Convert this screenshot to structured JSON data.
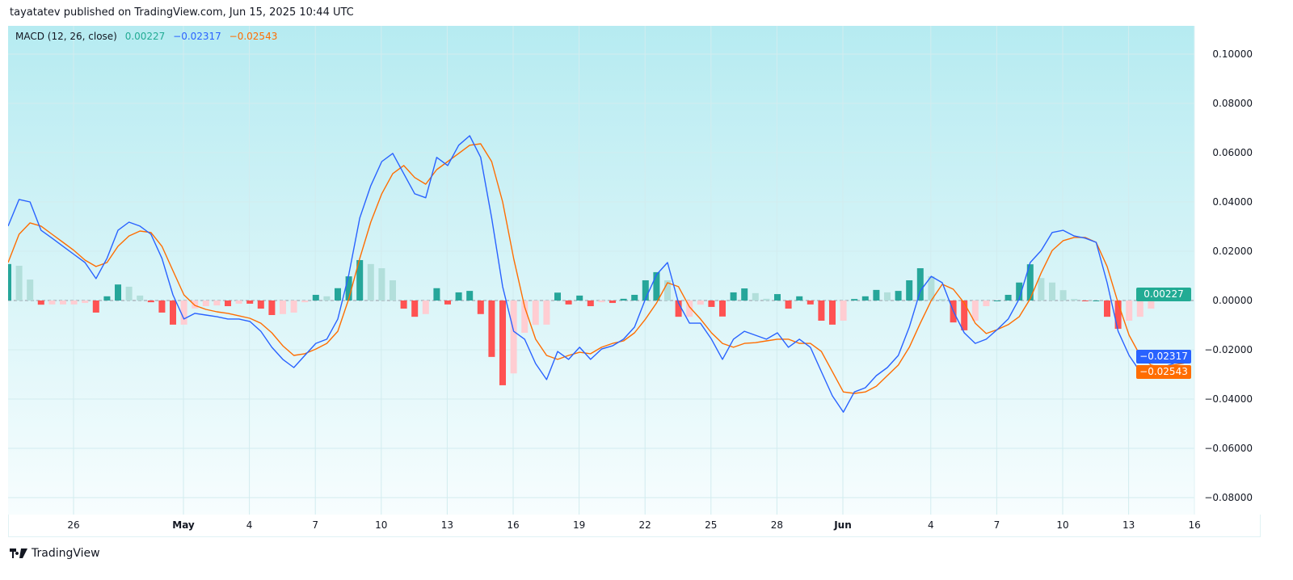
{
  "header": {
    "published": "tayatatev published on TradingView.com, Jun 15, 2025 10:44 UTC"
  },
  "legend": {
    "indicator": "MACD (12, 26, close)",
    "histogram_value": "0.00227",
    "macd_value": "−0.02317",
    "signal_value": "−0.02543"
  },
  "badges": {
    "histogram": "0.00227",
    "macd": "−0.02317",
    "signal": "−0.02543"
  },
  "footer": {
    "brand": "TradingView",
    "logo_icon": "tradingview-logo-icon"
  },
  "colors": {
    "macd": "#2962ff",
    "signal": "#ff6d00",
    "hist_pos_up": "#26a69a",
    "hist_pos_down": "#b2dfdb",
    "hist_neg_down": "#ff5252",
    "hist_neg_up": "#ffcdd2"
  },
  "chart_data": {
    "type": "line",
    "title": "MACD (12, 26, close)",
    "start": "2025-04-23T00:00",
    "interval_hours": 12,
    "ylim": [
      -0.09,
      0.11
    ],
    "grid": true,
    "y_ticks": [
      "0.10000",
      "0.08000",
      "0.06000",
      "0.04000",
      "0.02000",
      "0.00000",
      "−0.02000",
      "−0.04000",
      "−0.06000",
      "−0.08000"
    ],
    "y_tick_values": [
      0.1,
      0.08,
      0.06,
      0.04,
      0.02,
      0,
      -0.02,
      -0.04,
      -0.06,
      -0.08
    ],
    "x_ticks": [
      {
        "label": "26",
        "date": "2025-04-26"
      },
      {
        "label": "May",
        "date": "2025-05-01"
      },
      {
        "label": "4",
        "date": "2025-05-04"
      },
      {
        "label": "7",
        "date": "2025-05-07"
      },
      {
        "label": "10",
        "date": "2025-05-10"
      },
      {
        "label": "13",
        "date": "2025-05-13"
      },
      {
        "label": "16",
        "date": "2025-05-16"
      },
      {
        "label": "19",
        "date": "2025-05-19"
      },
      {
        "label": "22",
        "date": "2025-05-22"
      },
      {
        "label": "25",
        "date": "2025-05-25"
      },
      {
        "label": "28",
        "date": "2025-05-28"
      },
      {
        "label": "Jun",
        "date": "2025-05-31"
      },
      {
        "label": "4",
        "date": "2025-06-04"
      },
      {
        "label": "7",
        "date": "2025-06-07"
      },
      {
        "label": "10",
        "date": "2025-06-10"
      },
      {
        "label": "13",
        "date": "2025-06-13"
      },
      {
        "label": "16",
        "date": "2025-06-16"
      }
    ],
    "series": [
      {
        "name": "MACD",
        "values": [
          0.0302,
          0.041,
          0.04,
          0.0285,
          0.0253,
          0.022,
          0.0187,
          0.0154,
          0.0089,
          0.0171,
          0.0285,
          0.0318,
          0.0302,
          0.0269,
          0.0171,
          0.0023,
          -0.0075,
          -0.0052,
          -0.0059,
          -0.0066,
          -0.0075,
          -0.0075,
          -0.0085,
          -0.0125,
          -0.019,
          -0.0239,
          -0.0272,
          -0.0223,
          -0.0174,
          -0.0157,
          -0.0075,
          0.0105,
          0.0335,
          0.0466,
          0.0564,
          0.0597,
          0.0515,
          0.0433,
          0.0417,
          0.0581,
          0.0548,
          0.063,
          0.0669,
          0.0581,
          0.0335,
          0.0056,
          -0.0125,
          -0.0157,
          -0.0256,
          -0.0321,
          -0.0207,
          -0.0239,
          -0.019,
          -0.0239,
          -0.0197,
          -0.0184,
          -0.0157,
          -0.0108,
          0.0007,
          0.0105,
          0.0154,
          -0.001,
          -0.0092,
          -0.0092,
          -0.0157,
          -0.0239,
          -0.0157,
          -0.0125,
          -0.0141,
          -0.0157,
          -0.0131,
          -0.019,
          -0.0157,
          -0.019,
          -0.0289,
          -0.0387,
          -0.0453,
          -0.0371,
          -0.0354,
          -0.0305,
          -0.0272,
          -0.0223,
          -0.0108,
          0.0039,
          0.0098,
          0.0072,
          -0.0043,
          -0.0131,
          -0.0174,
          -0.0157,
          -0.0118,
          -0.0075,
          0.0007,
          0.0154,
          0.0203,
          0.0276,
          0.0285,
          0.0262,
          0.0253,
          0.0236,
          0.0072,
          -0.0125,
          -0.0223,
          -0.0289,
          -0.0295,
          -0.0272,
          -0.0256,
          -0.02317
        ]
      },
      {
        "name": "Signal",
        "values": [
          0.0154,
          0.0269,
          0.0315,
          0.0302,
          0.0269,
          0.0236,
          0.0203,
          0.0164,
          0.0138,
          0.0154,
          0.022,
          0.0262,
          0.0282,
          0.0276,
          0.022,
          0.0121,
          0.0023,
          -0.002,
          -0.0036,
          -0.0046,
          -0.0052,
          -0.0062,
          -0.0072,
          -0.0092,
          -0.0131,
          -0.0184,
          -0.0223,
          -0.0216,
          -0.0197,
          -0.0174,
          -0.0125,
          0.0007,
          0.0171,
          0.0318,
          0.0433,
          0.0515,
          0.0548,
          0.0499,
          0.0472,
          0.0531,
          0.0564,
          0.0597,
          0.063,
          0.0636,
          0.0564,
          0.04,
          0.0171,
          -0.0026,
          -0.0157,
          -0.0223,
          -0.0239,
          -0.0223,
          -0.021,
          -0.0216,
          -0.019,
          -0.0174,
          -0.0164,
          -0.0131,
          -0.0075,
          -0.001,
          0.0072,
          0.0056,
          -0.0026,
          -0.0075,
          -0.0131,
          -0.0174,
          -0.019,
          -0.0174,
          -0.0171,
          -0.0164,
          -0.0157,
          -0.0157,
          -0.0174,
          -0.0174,
          -0.0207,
          -0.0289,
          -0.0371,
          -0.0377,
          -0.0371,
          -0.0348,
          -0.0305,
          -0.0262,
          -0.019,
          -0.0092,
          0.0,
          0.0066,
          0.0046,
          -0.001,
          -0.0092,
          -0.0134,
          -0.0118,
          -0.0098,
          -0.0066,
          0.0007,
          0.0112,
          0.0203,
          0.0243,
          0.0256,
          0.0256,
          0.0236,
          0.0138,
          -0.001,
          -0.0141,
          -0.0223,
          -0.0262,
          -0.0272,
          -0.0262,
          -0.02543
        ]
      }
    ],
    "histogram": "MACD − Signal"
  }
}
